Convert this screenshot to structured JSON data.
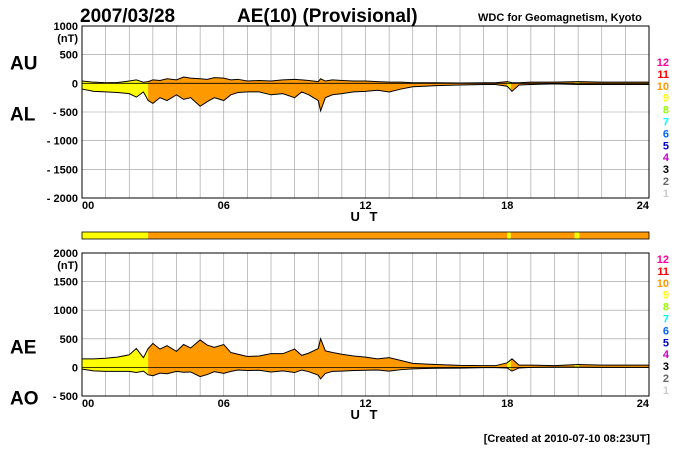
{
  "header": {
    "date": "2007/03/28",
    "title": "AE(10) (Provisional)",
    "credit": "WDC for Geomagnetism, Kyoto"
  },
  "footer": {
    "created": "[Created at 2010-07-10 08:23UT]"
  },
  "colors": {
    "yellow": "#ffff00",
    "orange": "#ff9900",
    "grid": "#999999",
    "outline": "#000000"
  },
  "legend": {
    "levels": [
      {
        "label": "12",
        "color": "#ff0099"
      },
      {
        "label": "11",
        "color": "#ff0000"
      },
      {
        "label": "10",
        "color": "#ff9900"
      },
      {
        "label": "9",
        "color": "#ffff00"
      },
      {
        "label": "8",
        "color": "#99ff00"
      },
      {
        "label": "7",
        "color": "#00ffff"
      },
      {
        "label": "6",
        "color": "#0066ff"
      },
      {
        "label": "5",
        "color": "#0000cc"
      },
      {
        "label": "4",
        "color": "#cc00cc"
      },
      {
        "label": "3",
        "color": "#000000"
      },
      {
        "label": "2",
        "color": "#666666"
      },
      {
        "label": "1",
        "color": "#cccccc"
      }
    ]
  },
  "station_bar": {
    "segments": [
      {
        "from": 0,
        "to": 2.8,
        "level": 9
      },
      {
        "from": 2.8,
        "to": 18.0,
        "level": 10
      },
      {
        "from": 18.0,
        "to": 18.15,
        "level": 9
      },
      {
        "from": 18.15,
        "to": 20.85,
        "level": 10
      },
      {
        "from": 20.85,
        "to": 21.05,
        "level": 9
      },
      {
        "from": 21.05,
        "to": 24,
        "level": 10
      }
    ]
  },
  "chart_data": [
    {
      "type": "area",
      "series_labels": [
        "AU",
        "AL"
      ],
      "unit": "(nT)",
      "xlabel": "U T",
      "xlim": [
        0,
        24
      ],
      "ylim": [
        -2000,
        1000
      ],
      "xticks": [
        "00",
        "06",
        "12",
        "18",
        "24"
      ],
      "xtick_values": [
        0,
        6,
        12,
        18,
        24
      ],
      "yticks": [
        "1000",
        "500",
        "0",
        "- 500",
        "- 1000",
        "- 1500",
        "- 2000"
      ],
      "ytick_values": [
        1000,
        500,
        0,
        -500,
        -1000,
        -1500,
        -2000
      ],
      "grid": true,
      "yellow_spans": [
        [
          0,
          2.8
        ],
        [
          18.0,
          18.15
        ],
        [
          20.85,
          21.05
        ]
      ],
      "x": [
        0,
        0.5,
        1,
        1.5,
        2,
        2.3,
        2.6,
        2.8,
        3,
        3.3,
        3.6,
        4,
        4.3,
        4.6,
        5,
        5.3,
        5.6,
        6,
        6.3,
        6.6,
        7,
        7.5,
        8,
        8.5,
        9,
        9.3,
        9.6,
        10,
        10.1,
        10.3,
        10.6,
        11,
        11.5,
        12,
        12.5,
        13,
        13.5,
        14,
        14.5,
        15,
        16,
        17,
        17.5,
        18,
        18.2,
        18.5,
        19,
        20,
        21,
        22,
        23,
        24
      ],
      "au": [
        40,
        20,
        10,
        15,
        40,
        60,
        20,
        30,
        60,
        50,
        80,
        60,
        110,
        90,
        80,
        70,
        100,
        90,
        60,
        70,
        40,
        50,
        40,
        60,
        70,
        60,
        50,
        30,
        80,
        40,
        60,
        50,
        40,
        40,
        30,
        20,
        20,
        10,
        10,
        10,
        5,
        10,
        10,
        30,
        10,
        10,
        20,
        20,
        30,
        20,
        20,
        20
      ],
      "al": [
        -100,
        -140,
        -150,
        -160,
        -180,
        -240,
        -150,
        -300,
        -350,
        -250,
        -300,
        -200,
        -280,
        -250,
        -400,
        -320,
        -250,
        -300,
        -200,
        -160,
        -150,
        -150,
        -200,
        -180,
        -250,
        -150,
        -200,
        -300,
        -480,
        -250,
        -200,
        -180,
        -150,
        -140,
        -120,
        -150,
        -100,
        -60,
        -50,
        -40,
        -30,
        -20,
        -20,
        -50,
        -140,
        -30,
        -20,
        -10,
        -20,
        -20,
        -20,
        -20
      ]
    },
    {
      "type": "area",
      "series_labels": [
        "AE",
        "AO"
      ],
      "unit": "(nT)",
      "xlabel": "U T",
      "xlim": [
        0,
        24
      ],
      "ylim": [
        -500,
        2000
      ],
      "xticks": [
        "00",
        "06",
        "12",
        "18",
        "24"
      ],
      "xtick_values": [
        0,
        6,
        12,
        18,
        24
      ],
      "yticks": [
        "2000",
        "1500",
        "1000",
        "500",
        "0",
        "- 500"
      ],
      "ytick_values": [
        2000,
        1500,
        1000,
        500,
        0,
        -500
      ],
      "grid": true,
      "yellow_spans": [
        [
          0,
          2.8
        ],
        [
          18.0,
          18.15
        ],
        [
          20.85,
          21.05
        ]
      ],
      "x": [
        0,
        0.5,
        1,
        1.5,
        2,
        2.3,
        2.6,
        2.8,
        3,
        3.3,
        3.6,
        4,
        4.3,
        4.6,
        5,
        5.3,
        5.6,
        6,
        6.3,
        6.6,
        7,
        7.5,
        8,
        8.5,
        9,
        9.3,
        9.6,
        10,
        10.1,
        10.3,
        10.6,
        11,
        11.5,
        12,
        12.5,
        13,
        13.5,
        14,
        14.5,
        15,
        16,
        17,
        17.5,
        18,
        18.2,
        18.5,
        19,
        20,
        21,
        22,
        23,
        24
      ],
      "ae": [
        150,
        150,
        160,
        180,
        220,
        330,
        170,
        330,
        420,
        320,
        380,
        280,
        400,
        340,
        480,
        390,
        350,
        400,
        260,
        230,
        190,
        200,
        240,
        240,
        320,
        210,
        250,
        330,
        500,
        290,
        260,
        230,
        200,
        180,
        150,
        170,
        120,
        70,
        60,
        50,
        35,
        30,
        30,
        80,
        150,
        40,
        40,
        30,
        50,
        40,
        40,
        40
      ],
      "ao": [
        -30,
        -60,
        -70,
        -70,
        -70,
        -90,
        -65,
        -130,
        -145,
        -100,
        -110,
        -70,
        -85,
        -80,
        -160,
        -125,
        -75,
        -105,
        -70,
        -45,
        -55,
        -50,
        -80,
        -60,
        -90,
        -45,
        -75,
        -135,
        -200,
        -105,
        -70,
        -65,
        -55,
        -50,
        -45,
        -65,
        -40,
        -25,
        -20,
        -15,
        -12,
        -5,
        -5,
        -10,
        -65,
        -10,
        0,
        5,
        5,
        0,
        0,
        0
      ]
    }
  ]
}
